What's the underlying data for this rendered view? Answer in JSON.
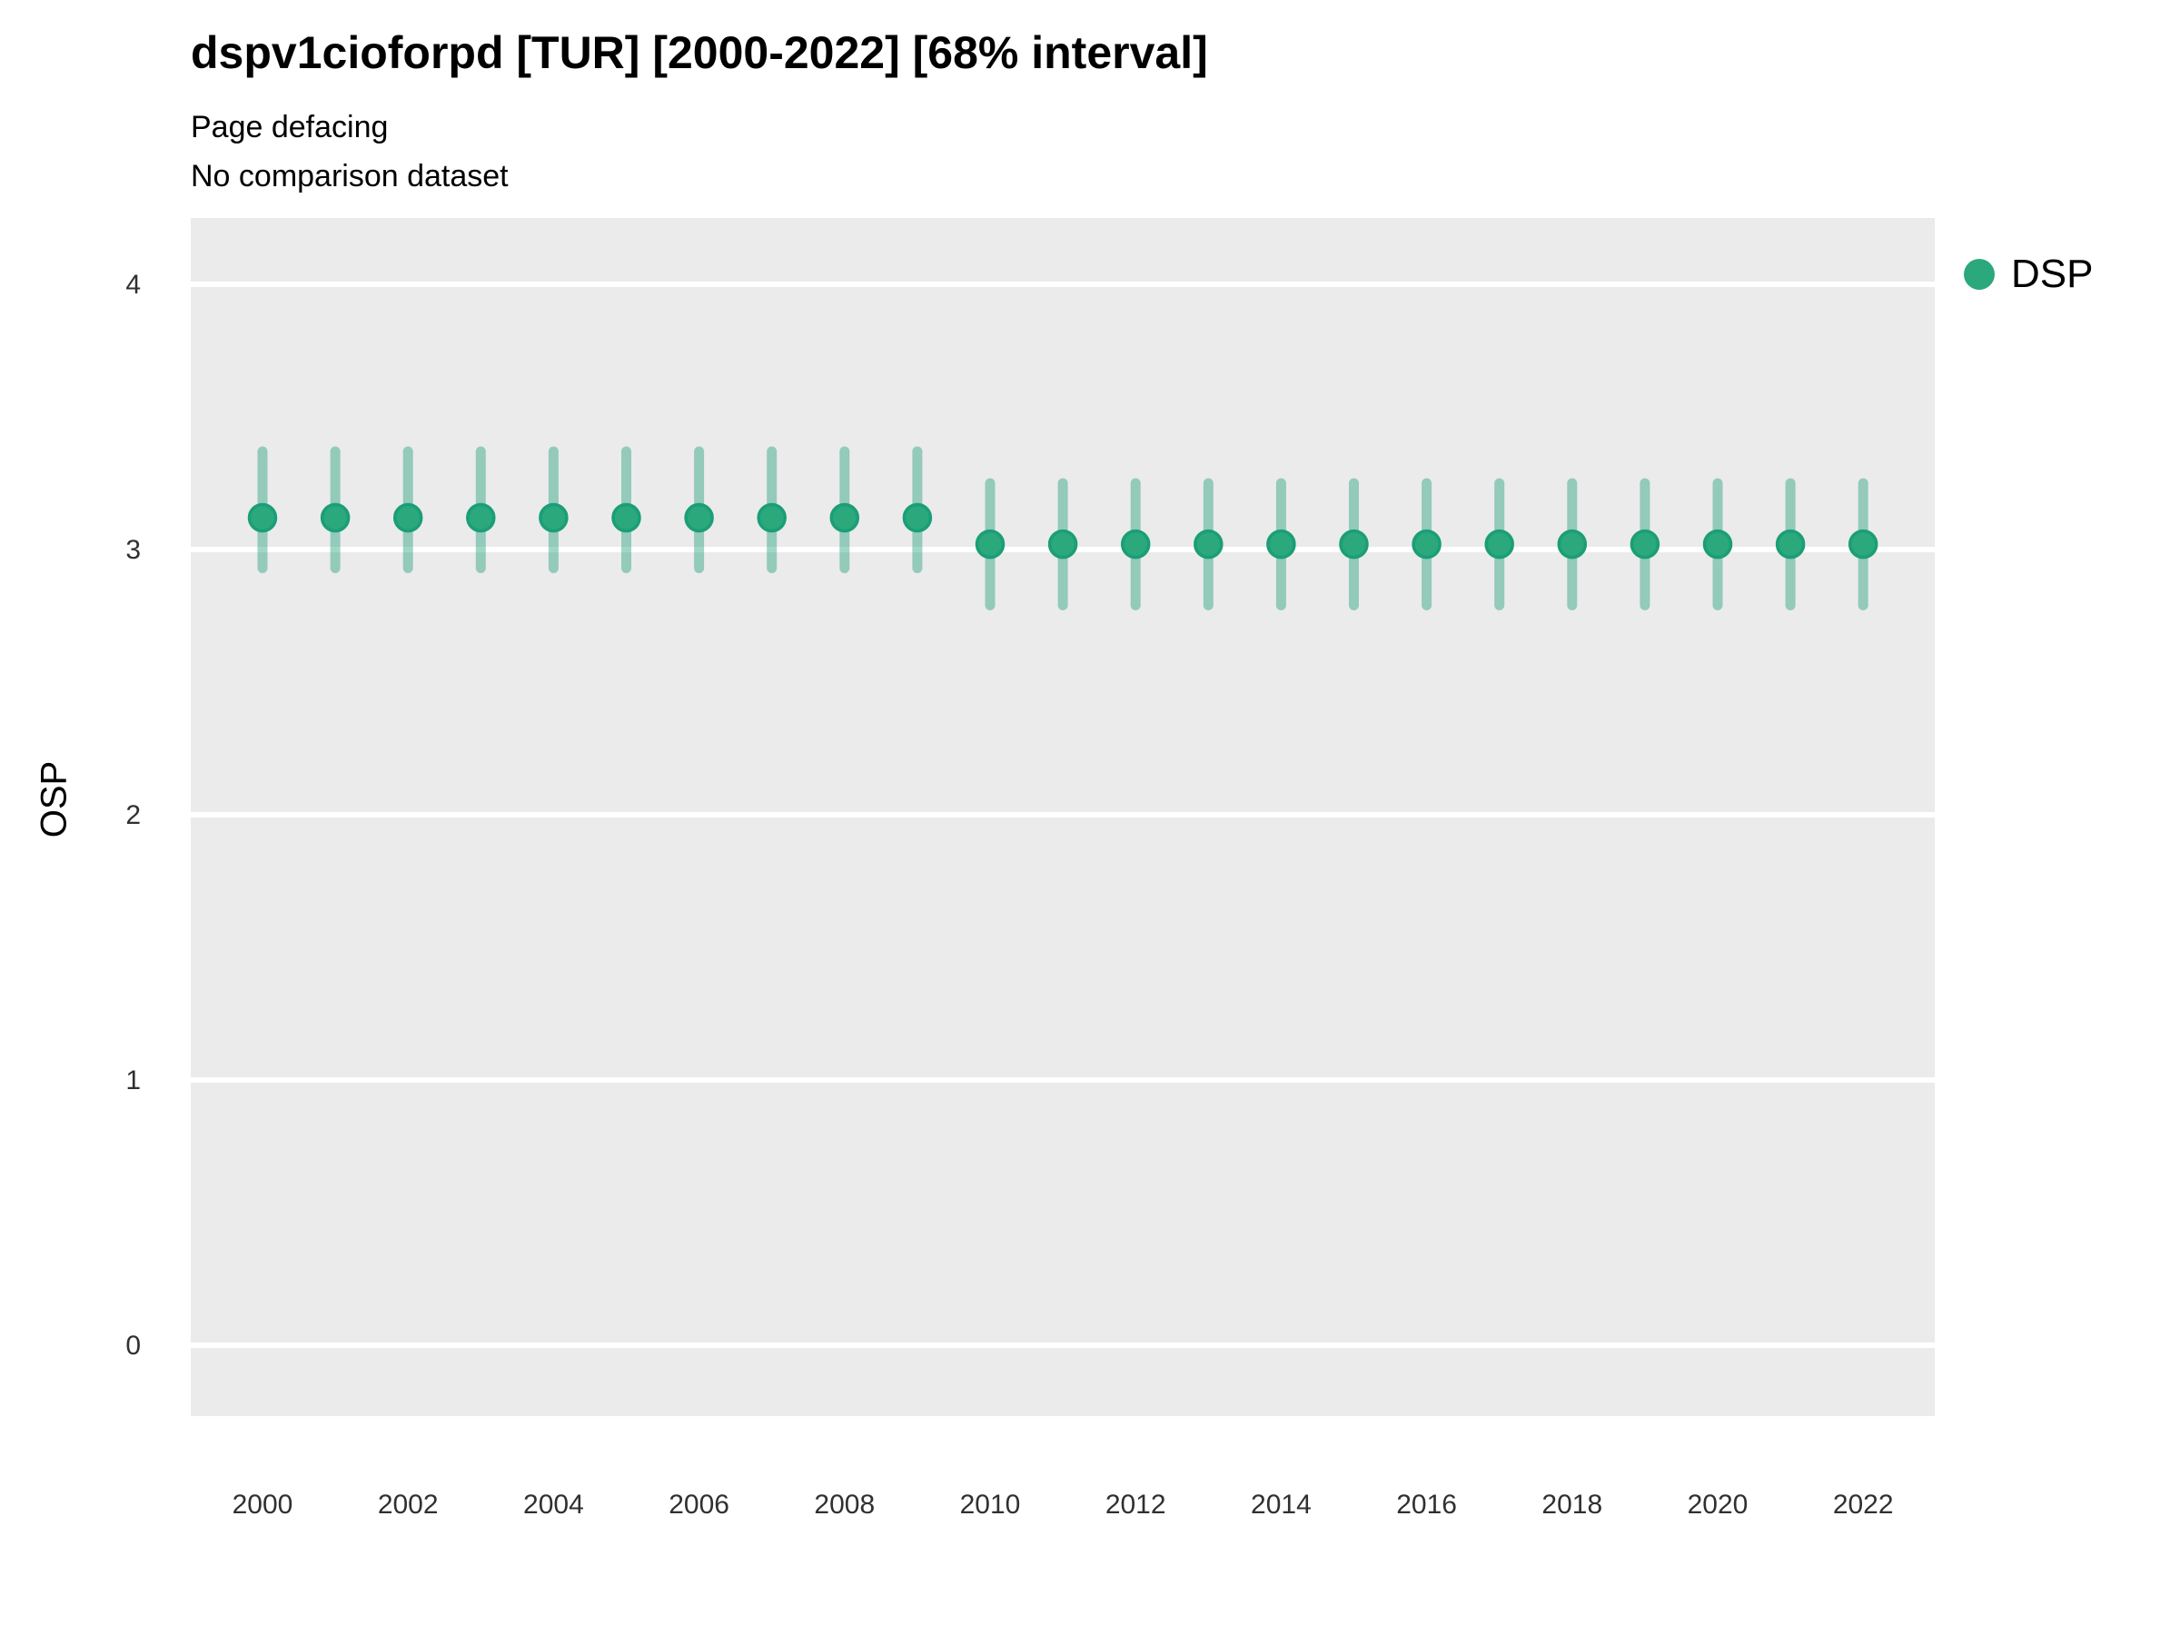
{
  "header": {
    "title": "dspv1cioforpd [TUR] [2000-2022] [68% interval]",
    "subtitle1": "Page defacing",
    "subtitle2": "No comparison dataset"
  },
  "legend": {
    "position": "right-top",
    "items": [
      {
        "label": "DSP",
        "marker": "circle",
        "marker_color": "#2BA87C"
      }
    ]
  },
  "colors": {
    "panel_background": "#EBEBEB",
    "gridline": "#FFFFFF",
    "point_fill": "#2BA87C",
    "point_stroke": "#1B9E77",
    "interval_bar": "rgba(27,158,119,0.42)",
    "tick_label": "#303030",
    "text": "#000000"
  },
  "chart_data": {
    "type": "scatter",
    "subtype": "pointrange",
    "title": "dspv1cioforpd [TUR] [2000-2022] [68% interval]",
    "xlabel": "",
    "ylabel": "OSP",
    "grid": "horizontal-major-only",
    "legend_position": "right",
    "x_ticks": [
      2000,
      2002,
      2004,
      2006,
      2008,
      2010,
      2012,
      2014,
      2016,
      2018,
      2020,
      2022
    ],
    "y_ticks": [
      0,
      1,
      2,
      3,
      4
    ],
    "xlim": [
      1999,
      2023
    ],
    "ylim": [
      -0.27,
      4.25
    ],
    "series": [
      {
        "name": "DSP",
        "points": [
          {
            "year": 2000,
            "value": 3.12,
            "lo": 2.93,
            "hi": 3.37
          },
          {
            "year": 2001,
            "value": 3.12,
            "lo": 2.93,
            "hi": 3.37
          },
          {
            "year": 2002,
            "value": 3.12,
            "lo": 2.93,
            "hi": 3.37
          },
          {
            "year": 2003,
            "value": 3.12,
            "lo": 2.93,
            "hi": 3.37
          },
          {
            "year": 2004,
            "value": 3.12,
            "lo": 2.93,
            "hi": 3.37
          },
          {
            "year": 2005,
            "value": 3.12,
            "lo": 2.93,
            "hi": 3.37
          },
          {
            "year": 2006,
            "value": 3.12,
            "lo": 2.93,
            "hi": 3.37
          },
          {
            "year": 2007,
            "value": 3.12,
            "lo": 2.93,
            "hi": 3.37
          },
          {
            "year": 2008,
            "value": 3.12,
            "lo": 2.93,
            "hi": 3.37
          },
          {
            "year": 2009,
            "value": 3.12,
            "lo": 2.93,
            "hi": 3.37
          },
          {
            "year": 2010,
            "value": 3.02,
            "lo": 2.79,
            "hi": 3.25
          },
          {
            "year": 2011,
            "value": 3.02,
            "lo": 2.79,
            "hi": 3.25
          },
          {
            "year": 2012,
            "value": 3.02,
            "lo": 2.79,
            "hi": 3.25
          },
          {
            "year": 2013,
            "value": 3.02,
            "lo": 2.79,
            "hi": 3.25
          },
          {
            "year": 2014,
            "value": 3.02,
            "lo": 2.79,
            "hi": 3.25
          },
          {
            "year": 2015,
            "value": 3.02,
            "lo": 2.79,
            "hi": 3.25
          },
          {
            "year": 2016,
            "value": 3.02,
            "lo": 2.79,
            "hi": 3.25
          },
          {
            "year": 2017,
            "value": 3.02,
            "lo": 2.79,
            "hi": 3.25
          },
          {
            "year": 2018,
            "value": 3.02,
            "lo": 2.79,
            "hi": 3.25
          },
          {
            "year": 2019,
            "value": 3.02,
            "lo": 2.79,
            "hi": 3.25
          },
          {
            "year": 2020,
            "value": 3.02,
            "lo": 2.79,
            "hi": 3.25
          },
          {
            "year": 2021,
            "value": 3.02,
            "lo": 2.79,
            "hi": 3.25
          },
          {
            "year": 2022,
            "value": 3.02,
            "lo": 2.79,
            "hi": 3.25
          }
        ]
      }
    ]
  }
}
